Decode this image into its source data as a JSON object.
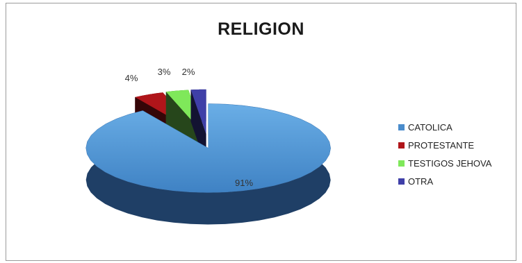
{
  "chart_data": {
    "type": "pie",
    "title": "RELIGION",
    "categories": [
      "CATOLICA",
      "PROTESTANTE",
      "TESTIGOS JEHOVA",
      "OTRA"
    ],
    "values": [
      91,
      4,
      3,
      2
    ],
    "value_labels": [
      "91%",
      "4%",
      "3%",
      "2%"
    ],
    "colors": [
      "#4a8ccc",
      "#b0151a",
      "#7fe85a",
      "#3f3fa8"
    ],
    "style": "3d-exploded",
    "legend_position": "right"
  }
}
